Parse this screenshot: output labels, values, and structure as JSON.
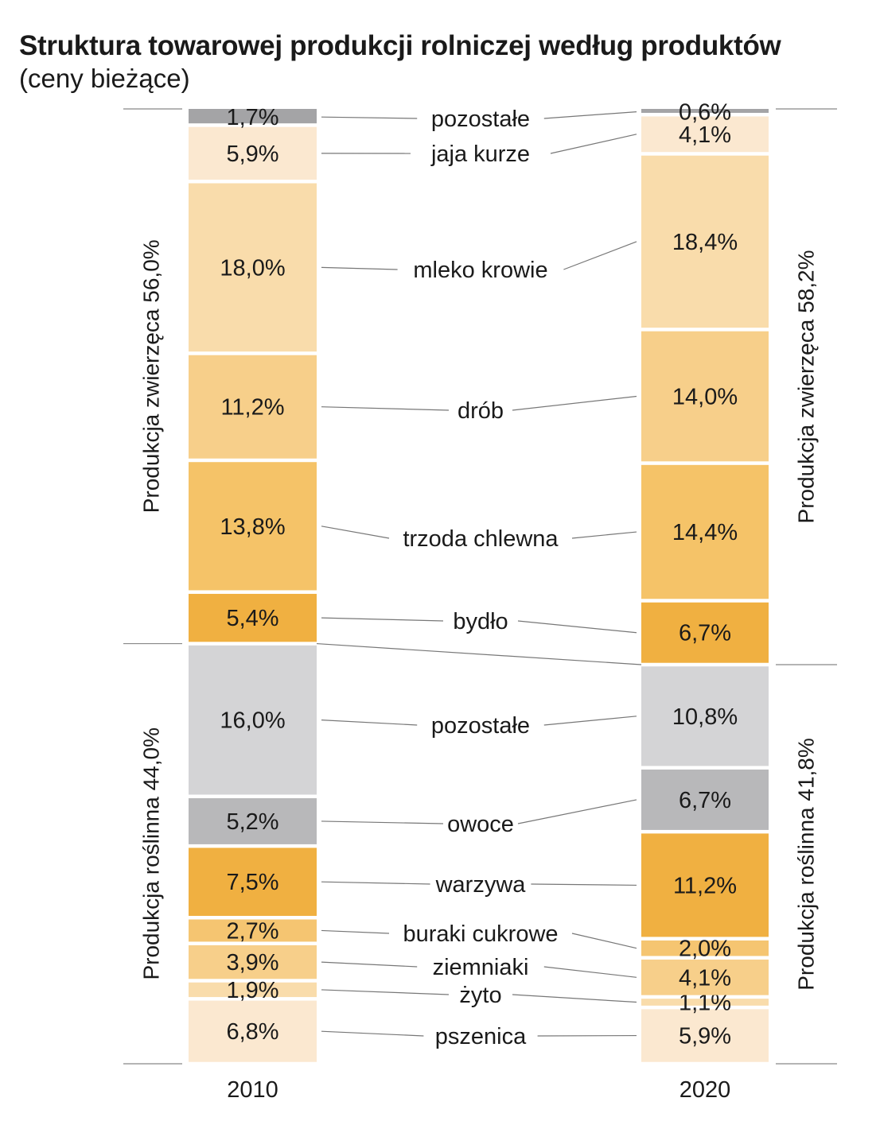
{
  "title": "Struktura towarowej produkcji rolniczej według produktów",
  "subtitle": "(ceny bieżące)",
  "chart_data": {
    "type": "bar",
    "stacked": true,
    "orientation": "vertical",
    "unit": "%",
    "categories": [
      "pszenica",
      "żyto",
      "ziemniaki",
      "buraki cukrowe",
      "warzywa",
      "owoce",
      "pozostałe",
      "bydło",
      "trzoda chlewna",
      "drób",
      "mleko krowie",
      "jaja kurze",
      "pozostałe"
    ],
    "series": [
      {
        "name": "2010",
        "values": [
          6.8,
          1.9,
          3.9,
          2.7,
          7.5,
          5.2,
          16.0,
          5.4,
          13.8,
          11.2,
          18.0,
          5.9,
          1.7
        ],
        "labels": [
          "6,8%",
          "1,9%",
          "3,9%",
          "2,7%",
          "7,5%",
          "5,2%",
          "16,0%",
          "5,4%",
          "13,8%",
          "11,2%",
          "18,0%",
          "5,9%",
          "1,7%"
        ]
      },
      {
        "name": "2020",
        "values": [
          5.9,
          1.1,
          4.1,
          2.0,
          11.2,
          6.7,
          10.8,
          6.7,
          14.4,
          14.0,
          18.4,
          4.1,
          0.6
        ],
        "labels": [
          "5,9%",
          "1,1%",
          "4,1%",
          "2,0%",
          "11,2%",
          "6,7%",
          "10,8%",
          "6,7%",
          "14,4%",
          "14,0%",
          "18,4%",
          "4,1%",
          "0,6%"
        ]
      }
    ],
    "colors": [
      "#fbe8d0",
      "#f9dcab",
      "#f7cf8a",
      "#f5c571",
      "#f0b041",
      "#b8b8ba",
      "#d4d4d6",
      "#f0b041",
      "#f5c368",
      "#f7cf8a",
      "#f9dcab",
      "#fbe8d0",
      "#a4a4a6"
    ],
    "groups": [
      {
        "name": "2010 roślinna",
        "label": "Produkcja roślinna 44,0%",
        "value": 44.0,
        "bar": 0,
        "from": 0,
        "to": 6
      },
      {
        "name": "2010 zwierzęca",
        "label": "Produkcja zwierzęca 56,0%",
        "value": 56.0,
        "bar": 0,
        "from": 7,
        "to": 12
      },
      {
        "name": "2020 roślinna",
        "label": "Produkcja roślinna 41,8%",
        "value": 41.8,
        "bar": 1,
        "from": 0,
        "to": 6
      },
      {
        "name": "2020 zwierzęca",
        "label": "Produkcja zwierzęca 58,2%",
        "value": 58.2,
        "bar": 1,
        "from": 7,
        "to": 12
      }
    ],
    "ylim": [
      0,
      100
    ],
    "legend": "none",
    "grid": false
  }
}
